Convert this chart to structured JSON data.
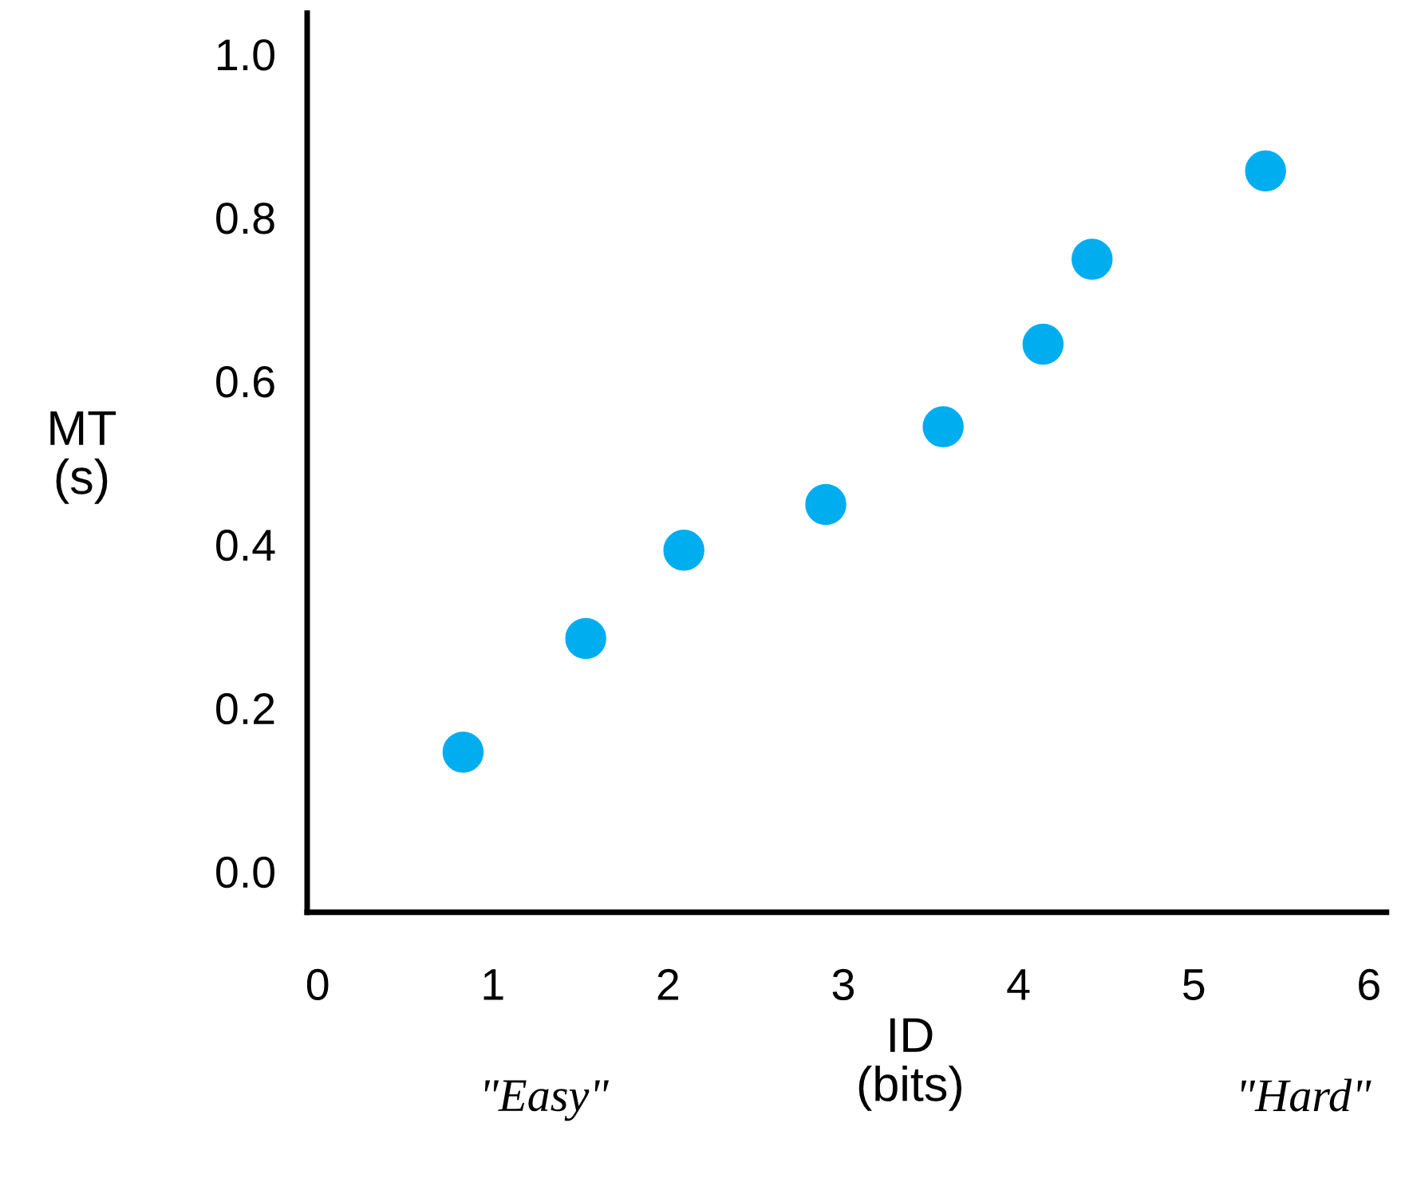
{
  "chart_data": {
    "type": "scatter",
    "xlabel": "ID\n(bits)",
    "ylabel": "MT\n(s)",
    "x": [
      0.83,
      1.53,
      2.09,
      2.9,
      3.57,
      4.14,
      4.42,
      5.41
    ],
    "series": [
      {
        "color": "#00adef",
        "values": [
          0.146,
          0.285,
          0.393,
          0.449,
          0.544,
          0.645,
          0.749,
          0.857
        ]
      }
    ],
    "xlim": [
      -0.06,
      6.1
    ],
    "ylim": [
      -0.05,
      1.05
    ],
    "xticks": [
      0,
      1,
      2,
      3,
      4,
      5,
      6
    ],
    "yticks": [
      {
        "value": 0,
        "label": "0.0"
      },
      {
        "value": 0.2,
        "label": "0.2"
      },
      {
        "value": 0.4,
        "label": "0.4"
      },
      {
        "value": 0.6,
        "label": "0.6"
      },
      {
        "value": 0.8,
        "label": "0.8"
      },
      {
        "value": 1.0,
        "label": "1.0"
      }
    ],
    "annotations": [
      "\"Easy\"",
      "\"Hard\""
    ],
    "grid": false,
    "legend": false,
    "marker": "circle"
  }
}
